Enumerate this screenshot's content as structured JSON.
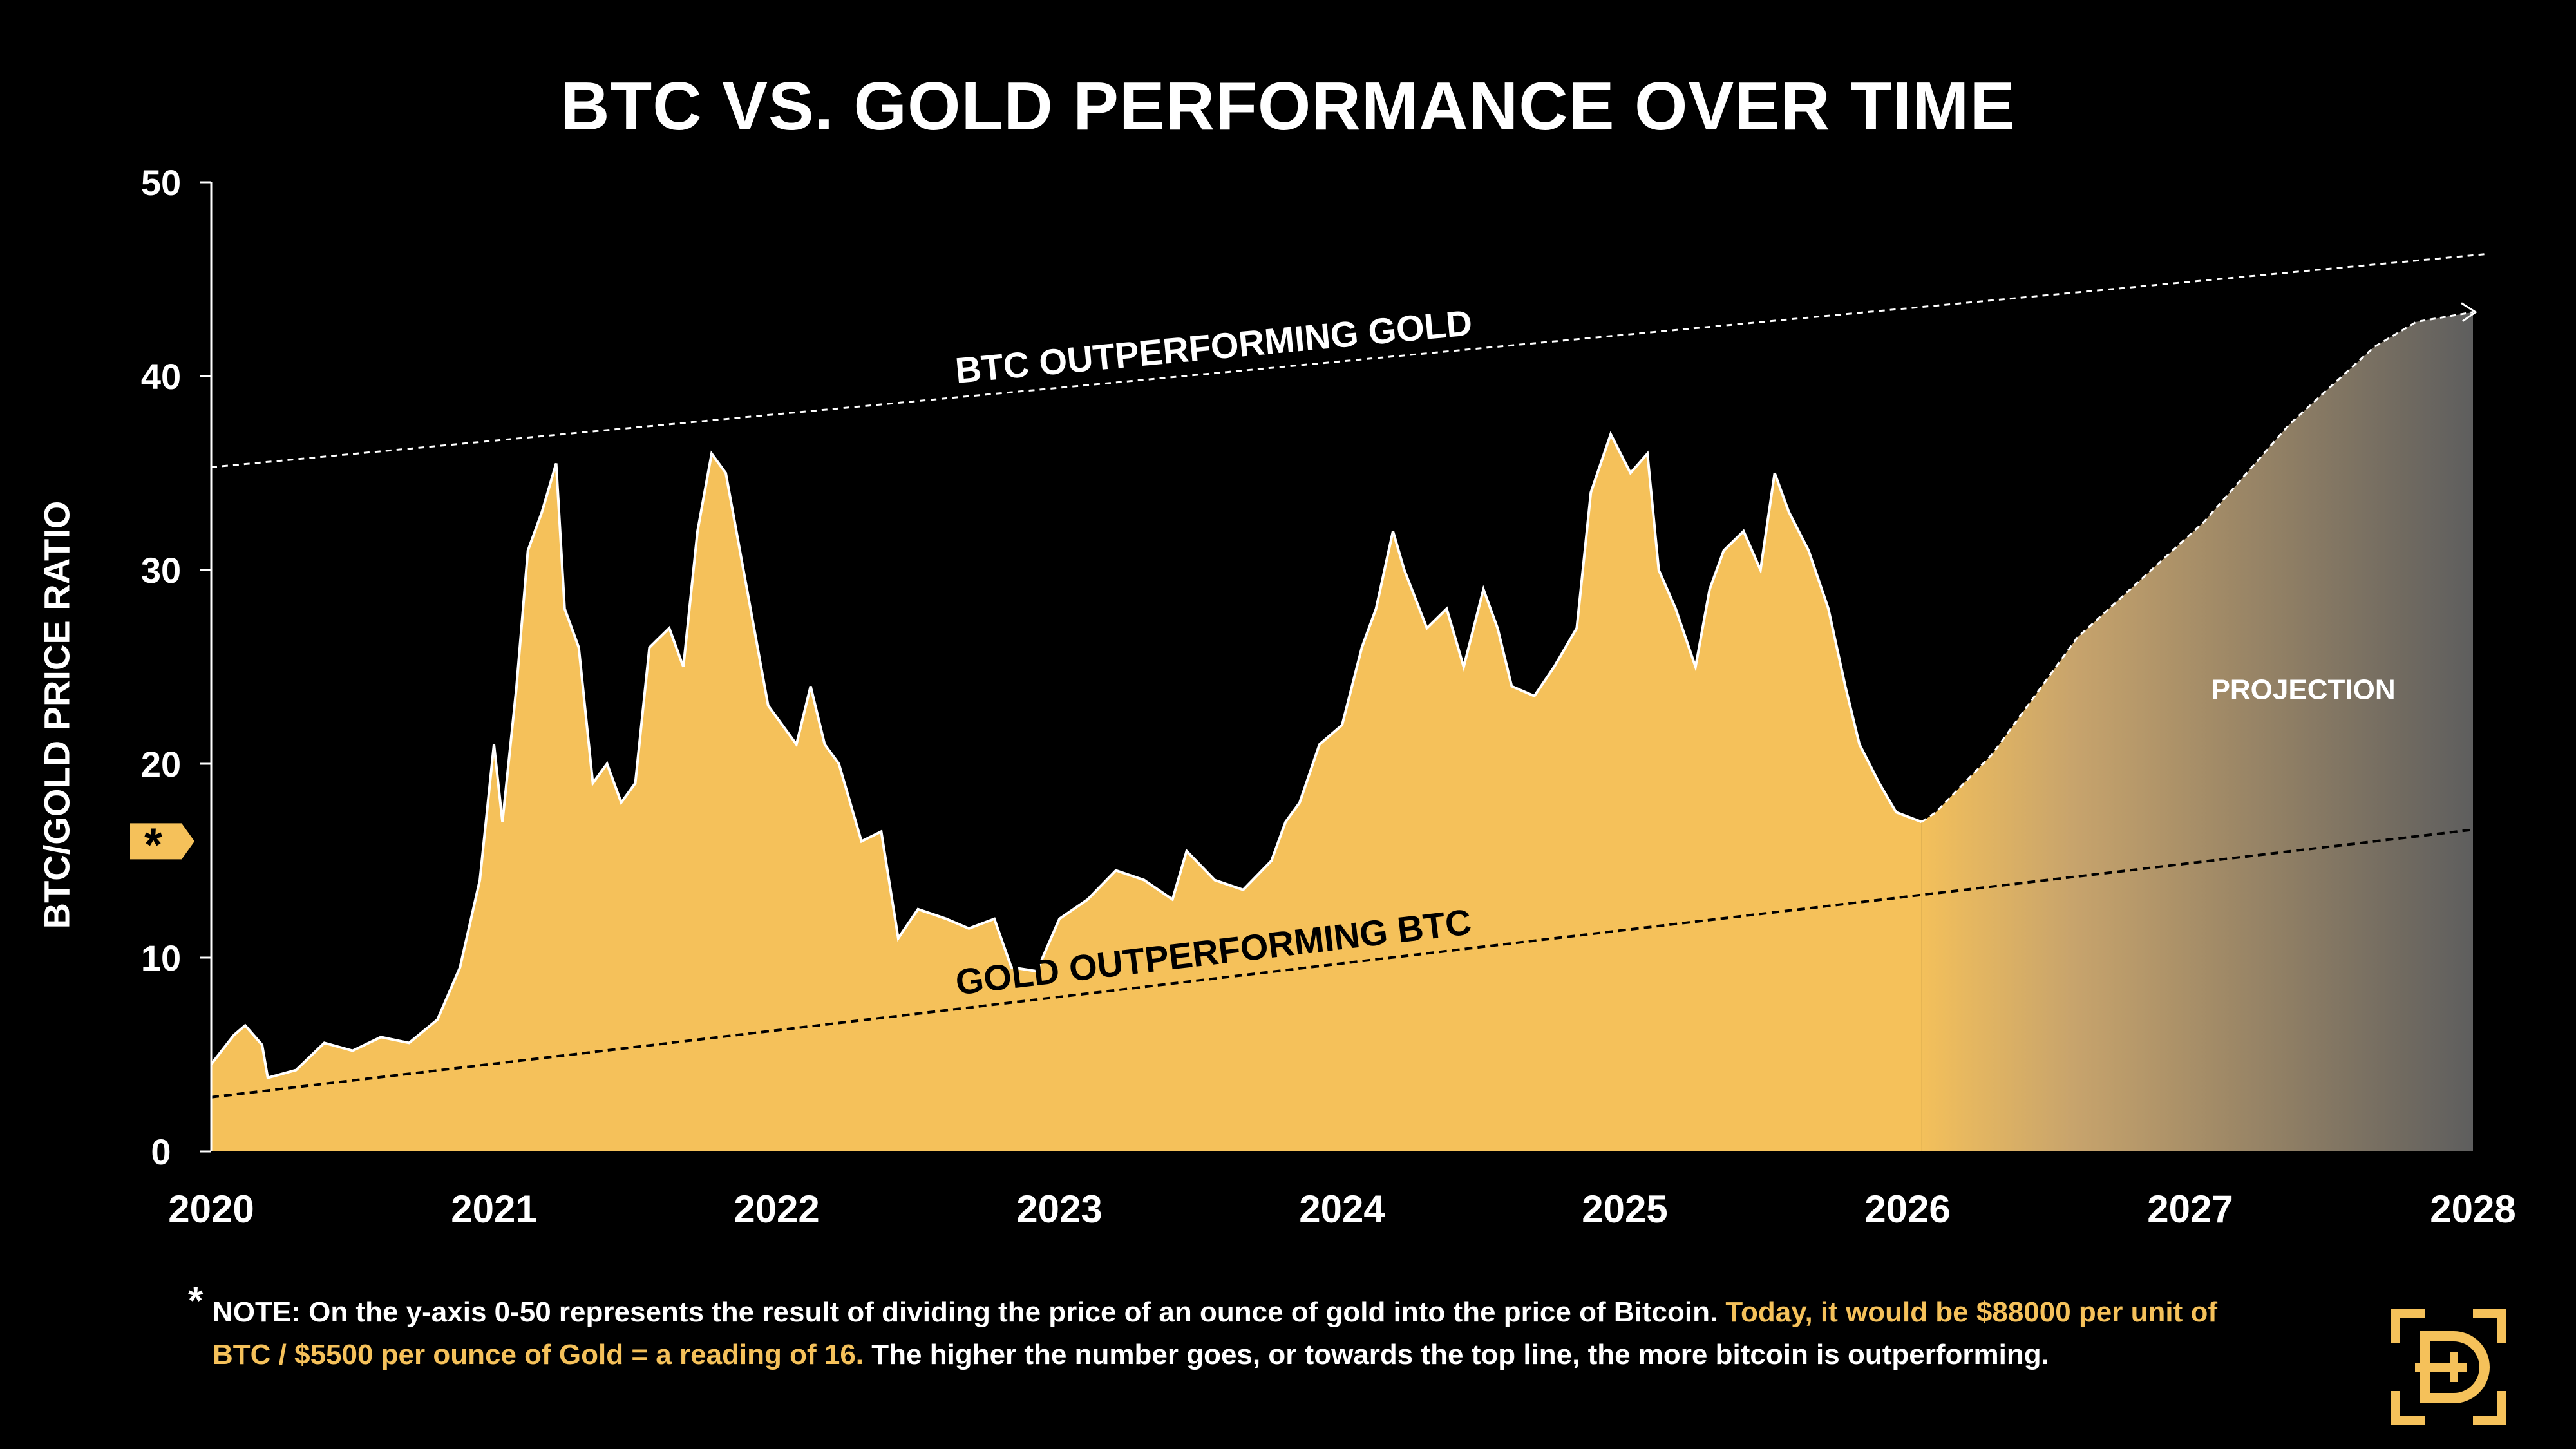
{
  "title": "BTC VS. GOLD PERFORMANCE OVER TIME",
  "colors": {
    "background": "#000000",
    "fill": "#f5c15a",
    "projection_end": "#5e5e5e",
    "text": "#ffffff",
    "accent": "#f5c15a"
  },
  "chart_data": {
    "type": "area",
    "title": "BTC VS. GOLD PERFORMANCE OVER TIME",
    "xlabel": "",
    "ylabel": "BTC/GOLD PRICE RATIO",
    "xlim": [
      2020,
      2028
    ],
    "ylim": [
      0,
      50
    ],
    "x_ticks": [
      "2020",
      "2021",
      "2022",
      "2023",
      "2024",
      "2025",
      "2026",
      "2027",
      "2028"
    ],
    "y_ticks": [
      "0",
      "10",
      "20",
      "30",
      "40",
      "50"
    ],
    "grid": false,
    "marker_label": "*",
    "marker_value": 16,
    "series": [
      {
        "name": "BTC/Gold ratio (historical)",
        "points": [
          [
            2020.0,
            4.5
          ],
          [
            2020.08,
            6.0
          ],
          [
            2020.12,
            6.5
          ],
          [
            2020.18,
            5.5
          ],
          [
            2020.2,
            3.8
          ],
          [
            2020.3,
            4.2
          ],
          [
            2020.4,
            5.6
          ],
          [
            2020.5,
            5.2
          ],
          [
            2020.6,
            5.9
          ],
          [
            2020.7,
            5.6
          ],
          [
            2020.8,
            6.8
          ],
          [
            2020.88,
            9.5
          ],
          [
            2020.95,
            14
          ],
          [
            2021.0,
            21
          ],
          [
            2021.03,
            17
          ],
          [
            2021.08,
            24
          ],
          [
            2021.12,
            31
          ],
          [
            2021.17,
            33
          ],
          [
            2021.22,
            35.5
          ],
          [
            2021.25,
            28
          ],
          [
            2021.3,
            26
          ],
          [
            2021.35,
            19
          ],
          [
            2021.4,
            20
          ],
          [
            2021.45,
            18
          ],
          [
            2021.5,
            19
          ],
          [
            2021.55,
            26
          ],
          [
            2021.62,
            27
          ],
          [
            2021.67,
            25
          ],
          [
            2021.72,
            32
          ],
          [
            2021.77,
            36
          ],
          [
            2021.82,
            35
          ],
          [
            2021.87,
            31
          ],
          [
            2021.92,
            27
          ],
          [
            2021.97,
            23
          ],
          [
            2022.02,
            22
          ],
          [
            2022.07,
            21
          ],
          [
            2022.12,
            24
          ],
          [
            2022.17,
            21
          ],
          [
            2022.22,
            20
          ],
          [
            2022.3,
            16
          ],
          [
            2022.37,
            16.5
          ],
          [
            2022.43,
            11
          ],
          [
            2022.5,
            12.5
          ],
          [
            2022.6,
            12
          ],
          [
            2022.68,
            11.5
          ],
          [
            2022.77,
            12
          ],
          [
            2022.83,
            9.5
          ],
          [
            2022.92,
            9.3
          ],
          [
            2023.0,
            12
          ],
          [
            2023.1,
            13
          ],
          [
            2023.2,
            14.5
          ],
          [
            2023.3,
            14
          ],
          [
            2023.4,
            13
          ],
          [
            2023.45,
            15.5
          ],
          [
            2023.55,
            14
          ],
          [
            2023.65,
            13.5
          ],
          [
            2023.75,
            15
          ],
          [
            2023.8,
            17
          ],
          [
            2023.85,
            18
          ],
          [
            2023.92,
            21
          ],
          [
            2024.0,
            22
          ],
          [
            2024.07,
            26
          ],
          [
            2024.12,
            28
          ],
          [
            2024.18,
            32
          ],
          [
            2024.22,
            30
          ],
          [
            2024.3,
            27
          ],
          [
            2024.37,
            28
          ],
          [
            2024.43,
            25
          ],
          [
            2024.5,
            29
          ],
          [
            2024.55,
            27
          ],
          [
            2024.6,
            24
          ],
          [
            2024.68,
            23.5
          ],
          [
            2024.75,
            25
          ],
          [
            2024.83,
            27
          ],
          [
            2024.88,
            34
          ],
          [
            2024.95,
            37
          ],
          [
            2025.02,
            35
          ],
          [
            2025.08,
            36
          ],
          [
            2025.12,
            30
          ],
          [
            2025.18,
            28
          ],
          [
            2025.25,
            25
          ],
          [
            2025.3,
            29
          ],
          [
            2025.35,
            31
          ],
          [
            2025.42,
            32
          ],
          [
            2025.48,
            30
          ],
          [
            2025.53,
            35
          ],
          [
            2025.58,
            33
          ],
          [
            2025.65,
            31
          ],
          [
            2025.72,
            28
          ],
          [
            2025.78,
            24
          ],
          [
            2025.83,
            21
          ],
          [
            2025.9,
            19
          ],
          [
            2025.96,
            17.5
          ],
          [
            2026.05,
            17
          ]
        ]
      },
      {
        "name": "Projection",
        "points": [
          [
            2026.05,
            17
          ],
          [
            2026.1,
            17.5
          ],
          [
            2026.2,
            19
          ],
          [
            2026.3,
            20.5
          ],
          [
            2026.45,
            23.5
          ],
          [
            2026.6,
            26.5
          ],
          [
            2026.75,
            28.5
          ],
          [
            2026.9,
            30.5
          ],
          [
            2027.05,
            32.5
          ],
          [
            2027.2,
            35
          ],
          [
            2027.35,
            37.5
          ],
          [
            2027.5,
            39.5
          ],
          [
            2027.65,
            41.5
          ],
          [
            2027.8,
            42.8
          ],
          [
            2028.0,
            43.3
          ]
        ]
      },
      {
        "name": "Upper trend line",
        "points": [
          [
            2020.0,
            35.3
          ],
          [
            2028.05,
            46.3
          ]
        ]
      },
      {
        "name": "Lower trend line",
        "points": [
          [
            2020.0,
            2.8
          ],
          [
            2028.0,
            16.6
          ]
        ]
      }
    ],
    "annotations": {
      "upper_line": "BTC OUTPERFORMING GOLD",
      "lower_line": "GOLD OUTPERFORMING BTC",
      "projection": "PROJECTION"
    }
  },
  "note": {
    "star": "*",
    "part1": "NOTE: On the y-axis 0-50 represents the result of dividing the price of an ounce of gold into the price of Bitcoin. ",
    "part2": "Today, it would be $88000 per unit of BTC / $5500 per ounce of Gold = a reading of 16.",
    "part3": " The higher the number goes, or towards the top line, the more bitcoin is outperforming."
  },
  "logo": {
    "icon": "dg-logo-icon"
  }
}
